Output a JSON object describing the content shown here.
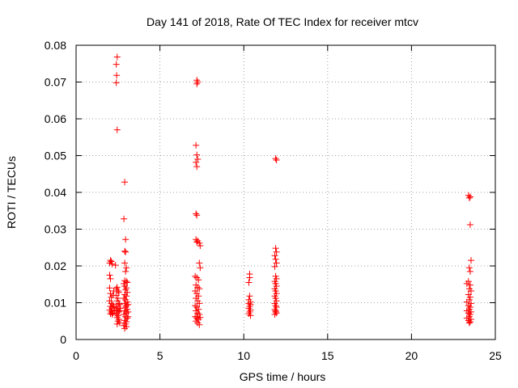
{
  "chart_data": {
    "type": "scatter",
    "title": "Day 141 of 2018, Rate Of TEC Index for receiver mtcv",
    "xlabel": "GPS time / hours",
    "ylabel": "ROTI / TECUs",
    "xlim": [
      0,
      25
    ],
    "ylim": [
      0,
      0.08
    ],
    "xticks": [
      0,
      5,
      10,
      15,
      20,
      25
    ],
    "xtick_labels": [
      "0",
      "5",
      "10",
      "15",
      "20",
      "25"
    ],
    "yticks": [
      0,
      0.01,
      0.02,
      0.03,
      0.04,
      0.05,
      0.06,
      0.07,
      0.08
    ],
    "ytick_labels": [
      "0",
      "0.01",
      "0.02",
      "0.03",
      "0.04",
      "0.05",
      "0.06",
      "0.07",
      "0.08"
    ],
    "grid": true,
    "marker": "+",
    "color": "#ff0000",
    "series": [
      {
        "name": "ROTI",
        "points": [
          [
            2.0,
            0.0208
          ],
          [
            2.05,
            0.0215
          ],
          [
            2.1,
            0.0212
          ],
          [
            2.15,
            0.0205
          ],
          [
            2.0,
            0.0175
          ],
          [
            2.05,
            0.0165
          ],
          [
            2.0,
            0.014
          ],
          [
            2.05,
            0.0125
          ],
          [
            2.1,
            0.0115
          ],
          [
            2.0,
            0.0105
          ],
          [
            2.1,
            0.0098
          ],
          [
            2.05,
            0.009
          ],
          [
            2.15,
            0.0085
          ],
          [
            2.0,
            0.008
          ],
          [
            2.1,
            0.0075
          ],
          [
            2.05,
            0.007
          ],
          [
            2.15,
            0.0068
          ],
          [
            2.2,
            0.0072
          ],
          [
            2.2,
            0.0095
          ],
          [
            2.25,
            0.0088
          ],
          [
            2.3,
            0.0078
          ],
          [
            2.2,
            0.012
          ],
          [
            2.25,
            0.0132
          ],
          [
            2.45,
            0.0768
          ],
          [
            2.4,
            0.0748
          ],
          [
            2.42,
            0.0718
          ],
          [
            2.4,
            0.0698
          ],
          [
            2.45,
            0.057
          ],
          [
            2.35,
            0.0202
          ],
          [
            2.45,
            0.0142
          ],
          [
            2.4,
            0.0138
          ],
          [
            2.5,
            0.0132
          ],
          [
            2.55,
            0.0128
          ],
          [
            2.4,
            0.012
          ],
          [
            2.5,
            0.0112
          ],
          [
            2.45,
            0.0105
          ],
          [
            2.55,
            0.0098
          ],
          [
            2.4,
            0.009
          ],
          [
            2.5,
            0.0085
          ],
          [
            2.45,
            0.008
          ],
          [
            2.55,
            0.0075
          ],
          [
            2.4,
            0.007
          ],
          [
            2.5,
            0.0065
          ],
          [
            2.45,
            0.006
          ],
          [
            2.55,
            0.0055
          ],
          [
            2.5,
            0.005
          ],
          [
            2.6,
            0.0045
          ],
          [
            2.45,
            0.0042
          ],
          [
            2.6,
            0.0095
          ],
          [
            2.65,
            0.0085
          ],
          [
            2.6,
            0.0078
          ],
          [
            2.9,
            0.0428
          ],
          [
            2.85,
            0.0328
          ],
          [
            2.95,
            0.0272
          ],
          [
            2.9,
            0.024
          ],
          [
            2.95,
            0.0238
          ],
          [
            2.9,
            0.0208
          ],
          [
            3.0,
            0.0195
          ],
          [
            2.95,
            0.0185
          ],
          [
            2.9,
            0.016
          ],
          [
            3.0,
            0.0158
          ],
          [
            3.05,
            0.0155
          ],
          [
            2.85,
            0.0152
          ],
          [
            2.9,
            0.0145
          ],
          [
            3.0,
            0.014
          ],
          [
            2.95,
            0.0135
          ],
          [
            3.05,
            0.0128
          ],
          [
            2.9,
            0.0122
          ],
          [
            3.0,
            0.0118
          ],
          [
            2.85,
            0.0112
          ],
          [
            2.95,
            0.0108
          ],
          [
            3.05,
            0.0102
          ],
          [
            2.9,
            0.0098
          ],
          [
            3.0,
            0.0092
          ],
          [
            2.95,
            0.0088
          ],
          [
            3.05,
            0.0082
          ],
          [
            2.9,
            0.0078
          ],
          [
            3.0,
            0.0072
          ],
          [
            2.85,
            0.0068
          ],
          [
            2.95,
            0.0062
          ],
          [
            3.05,
            0.0058
          ],
          [
            2.9,
            0.0052
          ],
          [
            3.0,
            0.0048
          ],
          [
            2.95,
            0.0042
          ],
          [
            2.85,
            0.0038
          ],
          [
            3.0,
            0.0035
          ],
          [
            2.9,
            0.003
          ],
          [
            3.1,
            0.0095
          ],
          [
            3.1,
            0.0075
          ],
          [
            3.1,
            0.0062
          ],
          [
            7.2,
            0.0705
          ],
          [
            7.25,
            0.07
          ],
          [
            7.2,
            0.0695
          ],
          [
            7.15,
            0.0528
          ],
          [
            7.2,
            0.0502
          ],
          [
            7.25,
            0.049
          ],
          [
            7.15,
            0.0482
          ],
          [
            7.2,
            0.047
          ],
          [
            7.15,
            0.0342
          ],
          [
            7.2,
            0.0338
          ],
          [
            7.15,
            0.0272
          ],
          [
            7.25,
            0.0268
          ],
          [
            7.2,
            0.0265
          ],
          [
            7.35,
            0.0262
          ],
          [
            7.4,
            0.0255
          ],
          [
            7.35,
            0.0208
          ],
          [
            7.4,
            0.0195
          ],
          [
            7.1,
            0.0172
          ],
          [
            7.2,
            0.0168
          ],
          [
            7.3,
            0.0162
          ],
          [
            7.15,
            0.0148
          ],
          [
            7.25,
            0.0142
          ],
          [
            7.35,
            0.0138
          ],
          [
            7.1,
            0.0132
          ],
          [
            7.2,
            0.0125
          ],
          [
            7.3,
            0.0118
          ],
          [
            7.15,
            0.0112
          ],
          [
            7.25,
            0.0105
          ],
          [
            7.35,
            0.0098
          ],
          [
            7.1,
            0.0092
          ],
          [
            7.2,
            0.0088
          ],
          [
            7.3,
            0.0082
          ],
          [
            7.15,
            0.0078
          ],
          [
            7.25,
            0.0072
          ],
          [
            7.35,
            0.0068
          ],
          [
            7.1,
            0.0062
          ],
          [
            7.2,
            0.0058
          ],
          [
            7.3,
            0.0055
          ],
          [
            7.4,
            0.006
          ],
          [
            7.15,
            0.005
          ],
          [
            7.25,
            0.0045
          ],
          [
            7.35,
            0.004
          ],
          [
            7.2,
            0.0062
          ],
          [
            10.35,
            0.0178
          ],
          [
            10.35,
            0.0168
          ],
          [
            10.3,
            0.0155
          ],
          [
            10.35,
            0.0118
          ],
          [
            10.3,
            0.0108
          ],
          [
            10.4,
            0.0102
          ],
          [
            10.3,
            0.0098
          ],
          [
            10.4,
            0.0095
          ],
          [
            10.35,
            0.009
          ],
          [
            10.3,
            0.0085
          ],
          [
            10.4,
            0.008
          ],
          [
            10.35,
            0.0075
          ],
          [
            10.3,
            0.007
          ],
          [
            10.4,
            0.0065
          ],
          [
            11.9,
            0.0492
          ],
          [
            11.95,
            0.0488
          ],
          [
            11.9,
            0.0248
          ],
          [
            11.95,
            0.0238
          ],
          [
            11.85,
            0.0228
          ],
          [
            11.9,
            0.0218
          ],
          [
            11.95,
            0.0208
          ],
          [
            11.85,
            0.0198
          ],
          [
            11.9,
            0.0172
          ],
          [
            11.95,
            0.0165
          ],
          [
            11.85,
            0.0158
          ],
          [
            11.9,
            0.0152
          ],
          [
            11.95,
            0.0145
          ],
          [
            11.85,
            0.0138
          ],
          [
            11.9,
            0.0132
          ],
          [
            11.95,
            0.0125
          ],
          [
            11.85,
            0.0118
          ],
          [
            11.9,
            0.0112
          ],
          [
            11.95,
            0.0105
          ],
          [
            11.85,
            0.0098
          ],
          [
            11.9,
            0.0092
          ],
          [
            11.95,
            0.0088
          ],
          [
            11.85,
            0.0082
          ],
          [
            11.9,
            0.0078
          ],
          [
            11.95,
            0.0072
          ],
          [
            11.85,
            0.0068
          ],
          [
            11.9,
            0.0075
          ],
          [
            23.4,
            0.0392
          ],
          [
            23.5,
            0.0388
          ],
          [
            23.45,
            0.0385
          ],
          [
            23.5,
            0.0312
          ],
          [
            23.55,
            0.0215
          ],
          [
            23.45,
            0.0195
          ],
          [
            23.5,
            0.0185
          ],
          [
            23.4,
            0.0158
          ],
          [
            23.3,
            0.0152
          ],
          [
            23.5,
            0.0148
          ],
          [
            23.45,
            0.0138
          ],
          [
            23.55,
            0.0132
          ],
          [
            23.4,
            0.0122
          ],
          [
            23.5,
            0.0115
          ],
          [
            23.45,
            0.0108
          ],
          [
            23.3,
            0.0102
          ],
          [
            23.55,
            0.0098
          ],
          [
            23.4,
            0.0092
          ],
          [
            23.5,
            0.0088
          ],
          [
            23.45,
            0.0082
          ],
          [
            23.3,
            0.0078
          ],
          [
            23.55,
            0.0075
          ],
          [
            23.4,
            0.0072
          ],
          [
            23.5,
            0.0068
          ],
          [
            23.45,
            0.0062
          ],
          [
            23.3,
            0.0058
          ],
          [
            23.55,
            0.0055
          ],
          [
            23.4,
            0.0052
          ],
          [
            23.5,
            0.0048
          ],
          [
            23.45,
            0.0045
          ]
        ]
      }
    ]
  }
}
